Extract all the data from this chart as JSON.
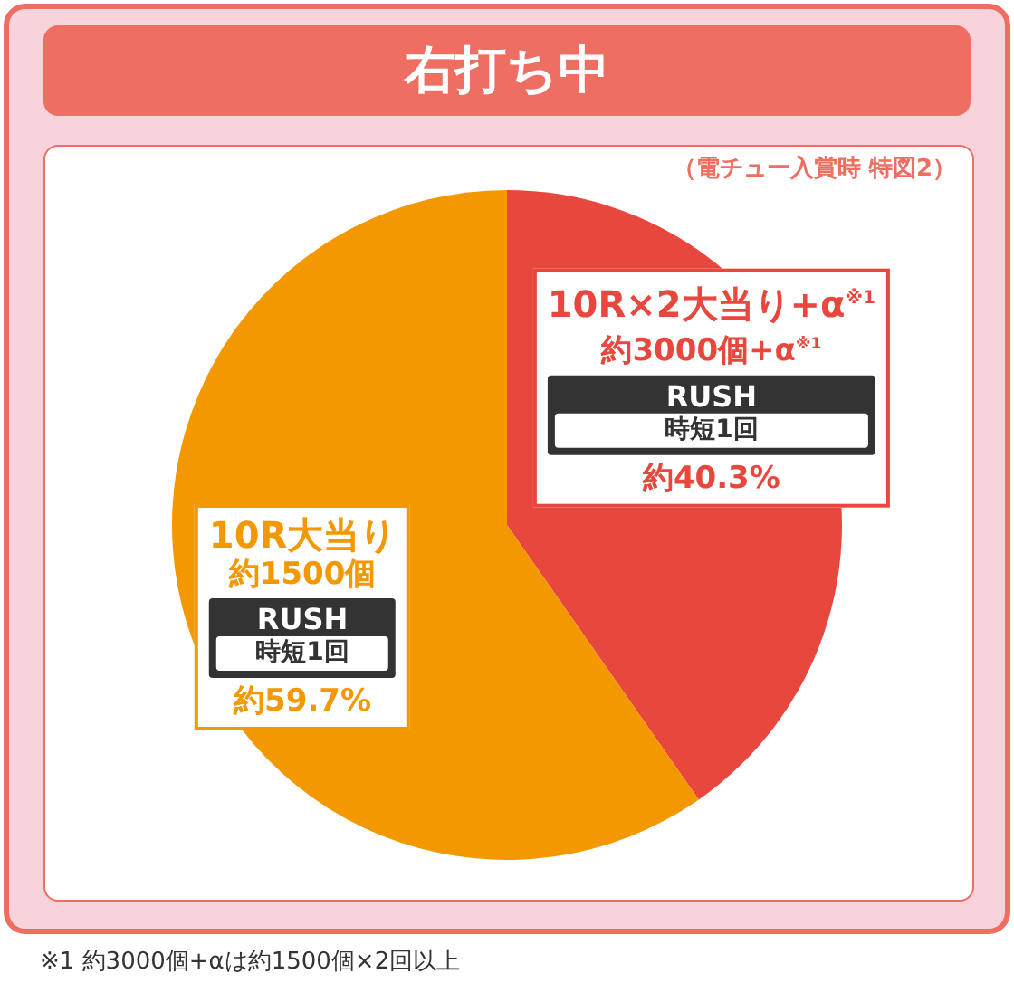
{
  "chart_data": {
    "type": "pie",
    "title": "右打ち中",
    "subtitle": "（電チュー入賞時 特図2）",
    "categories": [
      "10R×2大当り+α$^{※1}$",
      "10R大当り"
    ],
    "values": [
      40.3,
      59.7
    ],
    "colors": [
      "#e8473e",
      "#f39800"
    ],
    "value_labels": [
      "約40.3%",
      "約59.7%"
    ],
    "legend": false,
    "annotations": [
      "※1 約3000個+αは約1500個×2回以上",
      "約3000個+α$^{※1}$",
      "RUSH",
      "時短1回",
      "約1500個",
      "RUSH",
      "時短1回"
    ]
  }
}
